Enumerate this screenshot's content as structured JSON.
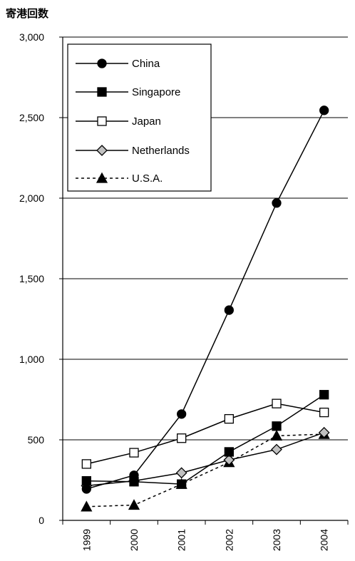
{
  "chart_data": {
    "type": "line",
    "title": "",
    "ylabel": "寄港回数",
    "xlabel": "",
    "categories": [
      "1999",
      "2000",
      "2001",
      "2002",
      "2003",
      "2004"
    ],
    "ylim": [
      0,
      3000
    ],
    "yticks": [
      0,
      500,
      1000,
      1500,
      2000,
      2500,
      3000
    ],
    "ytick_labels": [
      "0",
      "500",
      "1,000",
      "1,500",
      "2,000",
      "2,500",
      "3,000"
    ],
    "grid": "horizontal",
    "legend_position": "top-left",
    "series": [
      {
        "name": "China",
        "values": [
          195,
          280,
          660,
          1305,
          1970,
          2545
        ],
        "marker": "circle",
        "fill": "#000000",
        "dash": "solid"
      },
      {
        "name": "Singapore",
        "values": [
          245,
          240,
          225,
          425,
          585,
          780
        ],
        "marker": "square",
        "fill": "#000000",
        "dash": "solid"
      },
      {
        "name": "Japan",
        "values": [
          350,
          420,
          510,
          630,
          725,
          670
        ],
        "marker": "square",
        "fill": "#ffffff",
        "dash": "solid"
      },
      {
        "name": "Netherlands",
        "values": [
          215,
          245,
          295,
          375,
          440,
          545
        ],
        "marker": "diamond",
        "fill": "#c0c0c0",
        "dash": "solid"
      },
      {
        "name": "U.S.A.",
        "values": [
          85,
          95,
          225,
          360,
          525,
          535
        ],
        "marker": "triangle",
        "fill": "#000000",
        "dash": "dotted"
      }
    ]
  }
}
